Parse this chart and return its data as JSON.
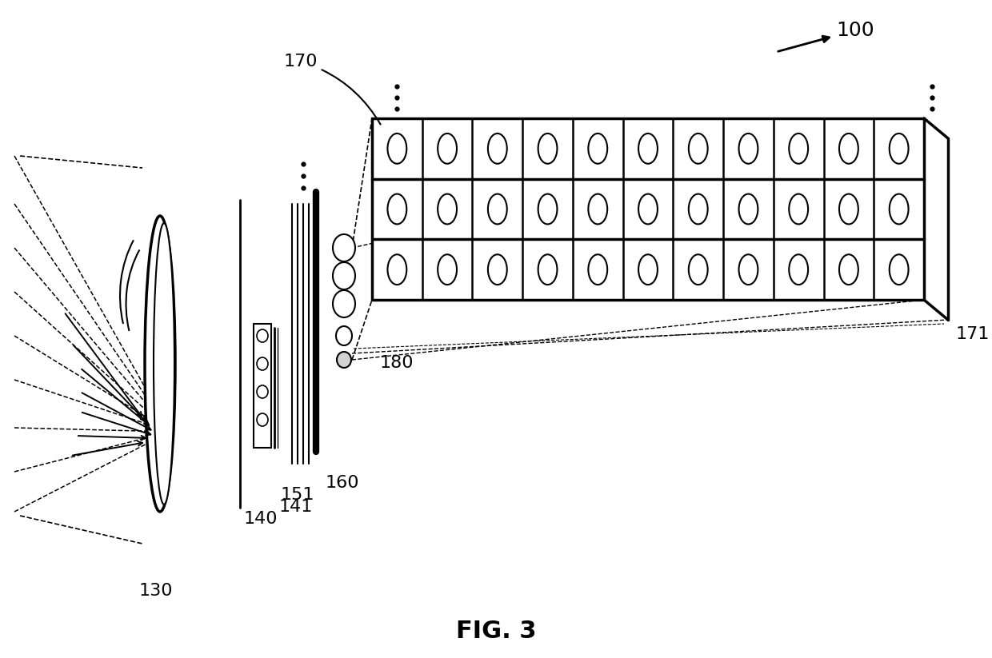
{
  "title": "FIG. 3",
  "label_100": "100",
  "label_130": "130",
  "label_140": "140",
  "label_141": "141",
  "label_151": "151",
  "label_160": "160",
  "label_170": "170",
  "label_171": "171",
  "label_180": "180",
  "bg_color": "#ffffff",
  "line_color": "#000000",
  "grid_rows": 3,
  "grid_cols": 11
}
